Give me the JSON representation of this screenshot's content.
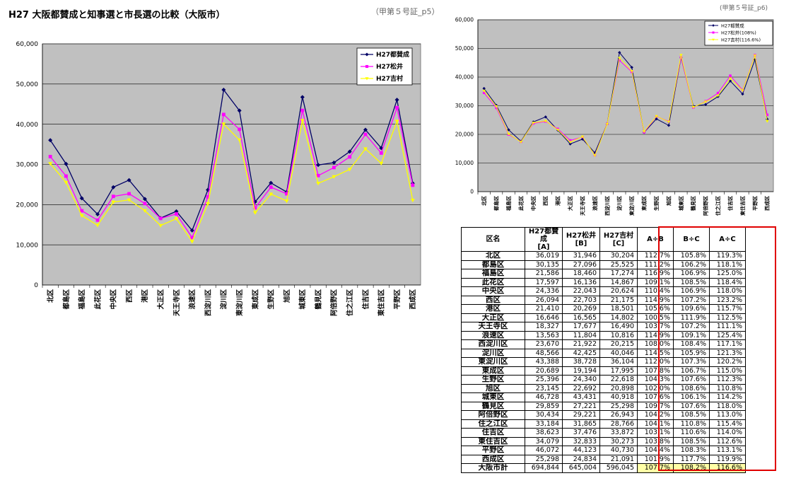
{
  "title": "H27 大阪都賛成と知事選と市長選の比較（大阪市）",
  "note_left": "（甲第５号証_p5）",
  "note_right": "(甲第５号証_p6)",
  "chart_data": [
    {
      "type": "line",
      "categories": [
        "北区",
        "都島区",
        "福島区",
        "此花区",
        "中央区",
        "西区",
        "港区",
        "大正区",
        "天王寺区",
        "浪速区",
        "西淀川区",
        "淀川区",
        "東淀川区",
        "東成区",
        "生野区",
        "旭区",
        "城東区",
        "鶴見区",
        "阿倍野区",
        "住之江区",
        "住吉区",
        "東住吉区",
        "平野区",
        "西成区"
      ],
      "ylim": [
        0,
        60000
      ],
      "yticks": [
        0,
        10000,
        20000,
        30000,
        40000,
        50000,
        60000
      ],
      "ytick_labels": [
        "0",
        "10,000",
        "20,000",
        "30,000",
        "40,000",
        "50,000",
        "60,000"
      ],
      "legend_position": "top-right",
      "series": [
        {
          "name": "H27都賛成",
          "color": "#000066",
          "values": [
            36019,
            30135,
            21586,
            17597,
            24336,
            26094,
            21410,
            16646,
            18327,
            13563,
            23670,
            48566,
            43388,
            20689,
            25396,
            23145,
            46728,
            29859,
            30434,
            33184,
            38623,
            34079,
            46072,
            25298
          ]
        },
        {
          "name": "H27松井",
          "color": "#ff00ff",
          "values": [
            31946,
            27096,
            18460,
            16136,
            22043,
            22703,
            20269,
            16565,
            17677,
            11804,
            21922,
            42425,
            38728,
            19194,
            24340,
            22692,
            43431,
            27221,
            29221,
            31865,
            37476,
            32833,
            44123,
            24834
          ]
        },
        {
          "name": "H27吉村",
          "color": "#ffff00",
          "values": [
            30204,
            25525,
            17274,
            14867,
            20624,
            21175,
            18501,
            14802,
            16490,
            10816,
            20215,
            40046,
            36104,
            17995,
            22618,
            20898,
            40918,
            25298,
            26943,
            28766,
            33872,
            30273,
            40730,
            21091
          ]
        }
      ]
    },
    {
      "type": "line",
      "categories": [
        "北区",
        "都島区",
        "福島区",
        "此花区",
        "中央区",
        "西区",
        "港区",
        "大正区",
        "天王寺区",
        "浪速区",
        "西淀川区",
        "淀川区",
        "東淀川区",
        "東成区",
        "生野区",
        "旭区",
        "城東区",
        "鶴見区",
        "阿倍野区",
        "住之江区",
        "住吉区",
        "東住吉区",
        "平野区",
        "西成区"
      ],
      "ylim": [
        0,
        60000
      ],
      "yticks": [
        0,
        10000,
        20000,
        30000,
        40000,
        50000,
        60000
      ],
      "ytick_labels": [
        "0",
        "10,000",
        "20,000",
        "30,000",
        "40,000",
        "50,000",
        "60,000"
      ],
      "legend_position": "top-left",
      "series": [
        {
          "name": "H27都賛成",
          "color": "#000066",
          "values": [
            36019,
            30135,
            21586,
            17597,
            24336,
            26094,
            21410,
            16646,
            18327,
            13563,
            23670,
            48566,
            43388,
            20689,
            25396,
            23145,
            46728,
            29859,
            30434,
            33184,
            38623,
            34079,
            46072,
            25298
          ]
        },
        {
          "name": "H27松井(108%)",
          "color": "#ff00ff",
          "values": [
            34502,
            29264,
            19937,
            17427,
            23806,
            24519,
            21891,
            17890,
            19091,
            12748,
            23676,
            45819,
            41826,
            20730,
            26287,
            24507,
            46905,
            29399,
            31559,
            34414,
            40474,
            35460,
            47653,
            26821
          ]
        },
        {
          "name": "H27吉村(116.6%)",
          "color": "#ffff00",
          "values": [
            35218,
            29762,
            20141,
            17335,
            24048,
            24690,
            21572,
            17259,
            19227,
            12611,
            23571,
            46694,
            42097,
            20982,
            26373,
            24367,
            47710,
            29497,
            31416,
            33541,
            39495,
            35298,
            47491,
            24592
          ]
        }
      ]
    }
  ],
  "table": {
    "headers": [
      "区名",
      "H27都賛成\n[A]",
      "H27松井\n[B]",
      "H27吉村\n[C]",
      "A÷B",
      "B÷C",
      "A÷C"
    ],
    "rows": [
      [
        "北区",
        "36,019",
        "31,946",
        "30,204",
        "112.7%",
        "105.8%",
        "119.3%"
      ],
      [
        "都島区",
        "30,135",
        "27,096",
        "25,525",
        "111.2%",
        "106.2%",
        "118.1%"
      ],
      [
        "福島区",
        "21,586",
        "18,460",
        "17,274",
        "116.9%",
        "106.9%",
        "125.0%"
      ],
      [
        "此花区",
        "17,597",
        "16,136",
        "14,867",
        "109.1%",
        "108.5%",
        "118.4%"
      ],
      [
        "中央区",
        "24,336",
        "22,043",
        "20,624",
        "110.4%",
        "106.9%",
        "118.0%"
      ],
      [
        "西区",
        "26,094",
        "22,703",
        "21,175",
        "114.9%",
        "107.2%",
        "123.2%"
      ],
      [
        "港区",
        "21,410",
        "20,269",
        "18,501",
        "105.6%",
        "109.6%",
        "115.7%"
      ],
      [
        "大正区",
        "16,646",
        "16,565",
        "14,802",
        "100.5%",
        "111.9%",
        "112.5%"
      ],
      [
        "天王寺区",
        "18,327",
        "17,677",
        "16,490",
        "103.7%",
        "107.2%",
        "111.1%"
      ],
      [
        "浪速区",
        "13,563",
        "11,804",
        "10,816",
        "114.9%",
        "109.1%",
        "125.4%"
      ],
      [
        "西淀川区",
        "23,670",
        "21,922",
        "20,215",
        "108.0%",
        "108.4%",
        "117.1%"
      ],
      [
        "淀川区",
        "48,566",
        "42,425",
        "40,046",
        "114.5%",
        "105.9%",
        "121.3%"
      ],
      [
        "東淀川区",
        "43,388",
        "38,728",
        "36,104",
        "112.0%",
        "107.3%",
        "120.2%"
      ],
      [
        "東成区",
        "20,689",
        "19,194",
        "17,995",
        "107.8%",
        "106.7%",
        "115.0%"
      ],
      [
        "生野区",
        "25,396",
        "24,340",
        "22,618",
        "104.3%",
        "107.6%",
        "112.3%"
      ],
      [
        "旭区",
        "23,145",
        "22,692",
        "20,898",
        "102.0%",
        "108.6%",
        "110.8%"
      ],
      [
        "城東区",
        "46,728",
        "43,431",
        "40,918",
        "107.6%",
        "106.1%",
        "114.2%"
      ],
      [
        "鶴見区",
        "29,859",
        "27,221",
        "25,298",
        "109.7%",
        "107.6%",
        "118.0%"
      ],
      [
        "阿倍野区",
        "30,434",
        "29,221",
        "26,943",
        "104.2%",
        "108.5%",
        "113.0%"
      ],
      [
        "住之江区",
        "33,184",
        "31,865",
        "28,766",
        "104.1%",
        "110.8%",
        "115.4%"
      ],
      [
        "住吉区",
        "38,623",
        "37,476",
        "33,872",
        "103.1%",
        "110.6%",
        "114.0%"
      ],
      [
        "東住吉区",
        "34,079",
        "32,833",
        "30,273",
        "103.8%",
        "108.5%",
        "112.6%"
      ],
      [
        "平野区",
        "46,072",
        "44,123",
        "40,730",
        "104.4%",
        "108.3%",
        "113.1%"
      ],
      [
        "西成区",
        "25,298",
        "24,834",
        "21,091",
        "101.9%",
        "117.7%",
        "119.9%"
      ]
    ],
    "total": [
      "大阪市計",
      "694,844",
      "645,004",
      "596,045",
      "107.7%",
      "108.2%",
      "116.6%"
    ]
  }
}
